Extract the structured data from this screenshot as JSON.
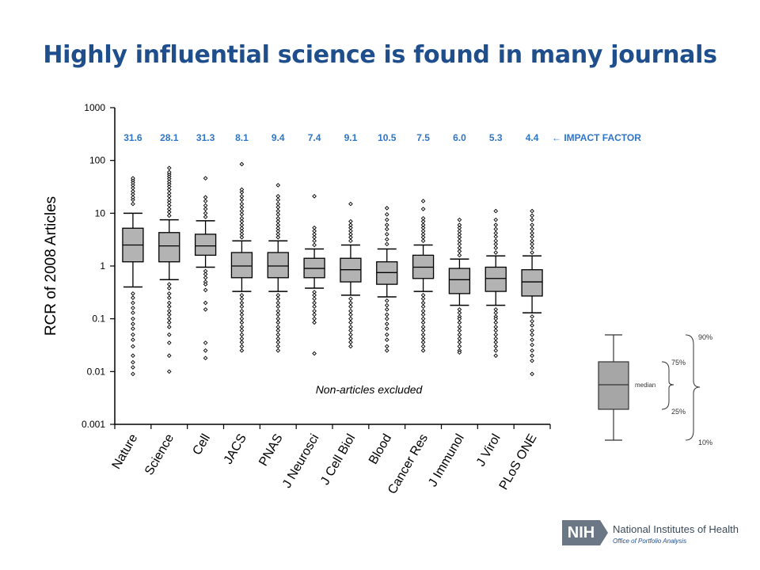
{
  "slide": {
    "title": "Highly influential science is found in many journals"
  },
  "chart_data": {
    "type": "box",
    "ylabel": "RCR of 2008 Articles",
    "yscale": "log",
    "ylim": [
      0.001,
      1000
    ],
    "yticks": [
      "1000",
      "100",
      "10",
      "1",
      "0.1",
      "0.01",
      "0.001"
    ],
    "ytick_values": [
      1000,
      100,
      10,
      1,
      0.1,
      0.01,
      0.001
    ],
    "categories": [
      "Nature",
      "Science",
      "Cell",
      "JACS",
      "PNAS",
      "J Neurosci",
      "J Cell Biol",
      "Blood",
      "Cancer Res",
      "J Immunol",
      "J Virol",
      "PLoS ONE"
    ],
    "impact_factors": [
      "31.6",
      "28.1",
      "31.3",
      "8.1",
      "9.4",
      "7.4",
      "9.1",
      "10.5",
      "7.5",
      "6.0",
      "5.3",
      "4.4"
    ],
    "impact_factor_label": "IMPACT  FACTOR",
    "annotation": "Non-articles excluded",
    "boxes": [
      {
        "p10": 0.4,
        "p25": 1.2,
        "median": 2.5,
        "p75": 5.2,
        "p90": 10,
        "out_high": [
          15,
          18,
          20,
          23,
          26,
          30,
          34,
          38,
          42,
          46
        ],
        "out_low": [
          0.3,
          0.25,
          0.2,
          0.16,
          0.13,
          0.1,
          0.08,
          0.065,
          0.05,
          0.04,
          0.03,
          0.02,
          0.015,
          0.012,
          0.009
        ]
      },
      {
        "p10": 0.55,
        "p25": 1.2,
        "median": 2.4,
        "p75": 4.3,
        "p90": 7.5,
        "out_high": [
          9,
          10.5,
          12,
          14,
          16,
          18,
          21,
          24,
          28,
          32,
          36,
          40,
          45,
          50,
          55,
          60,
          72
        ],
        "out_low": [
          0.45,
          0.38,
          0.3,
          0.25,
          0.2,
          0.17,
          0.14,
          0.12,
          0.1,
          0.085,
          0.07,
          0.05,
          0.035,
          0.02,
          0.01
        ]
      },
      {
        "p10": 0.95,
        "p25": 1.6,
        "median": 2.4,
        "p75": 4.0,
        "p90": 7.2,
        "out_high": [
          8.5,
          10,
          12,
          14,
          17,
          20,
          46
        ],
        "out_low": [
          0.8,
          0.7,
          0.6,
          0.5,
          0.45,
          0.35,
          0.2,
          0.15,
          0.035,
          0.025,
          0.018
        ]
      },
      {
        "p10": 0.33,
        "p25": 0.6,
        "median": 1.0,
        "p75": 1.8,
        "p90": 3.0,
        "out_high": [
          3.5,
          4,
          4.6,
          5.2,
          6,
          7,
          8,
          9.5,
          11,
          13,
          15,
          18,
          21,
          25,
          28,
          85
        ],
        "out_low": [
          0.28,
          0.24,
          0.2,
          0.17,
          0.14,
          0.12,
          0.1,
          0.085,
          0.07,
          0.06,
          0.05,
          0.042,
          0.036,
          0.03,
          0.025
        ]
      },
      {
        "p10": 0.33,
        "p25": 0.6,
        "median": 1.0,
        "p75": 1.8,
        "p90": 3.0,
        "out_high": [
          3.5,
          4,
          4.6,
          5.2,
          6,
          7,
          8,
          9.5,
          11,
          13,
          15,
          18,
          21,
          34
        ],
        "out_low": [
          0.28,
          0.24,
          0.2,
          0.17,
          0.14,
          0.12,
          0.1,
          0.085,
          0.07,
          0.06,
          0.05,
          0.042,
          0.036,
          0.03,
          0.025
        ]
      },
      {
        "p10": 0.38,
        "p25": 0.6,
        "median": 0.9,
        "p75": 1.4,
        "p90": 2.1,
        "out_high": [
          2.5,
          3,
          3.5,
          4,
          4.6,
          5.3,
          21
        ],
        "out_low": [
          0.32,
          0.28,
          0.24,
          0.2,
          0.17,
          0.14,
          0.12,
          0.1,
          0.085,
          0.022
        ]
      },
      {
        "p10": 0.28,
        "p25": 0.5,
        "median": 0.85,
        "p75": 1.4,
        "p90": 2.5,
        "out_high": [
          3,
          3.5,
          4,
          4.6,
          5.3,
          6,
          7,
          15
        ],
        "out_low": [
          0.24,
          0.2,
          0.17,
          0.14,
          0.12,
          0.1,
          0.085,
          0.07,
          0.06,
          0.05,
          0.042,
          0.036,
          0.03
        ]
      },
      {
        "p10": 0.26,
        "p25": 0.45,
        "median": 0.75,
        "p75": 1.2,
        "p90": 2.1,
        "out_high": [
          2.6,
          3.2,
          4,
          5,
          6,
          7.5,
          9.5,
          12.5
        ],
        "out_low": [
          0.22,
          0.18,
          0.15,
          0.12,
          0.1,
          0.08,
          0.065,
          0.05,
          0.04,
          0.03,
          0.025
        ]
      },
      {
        "p10": 0.33,
        "p25": 0.58,
        "median": 0.95,
        "p75": 1.6,
        "p90": 2.5,
        "out_high": [
          3,
          3.5,
          4,
          4.6,
          5.3,
          6,
          7,
          8,
          12,
          17
        ],
        "out_low": [
          0.28,
          0.24,
          0.2,
          0.17,
          0.14,
          0.12,
          0.1,
          0.085,
          0.07,
          0.06,
          0.05,
          0.042,
          0.036,
          0.03,
          0.025
        ]
      },
      {
        "p10": 0.18,
        "p25": 0.3,
        "median": 0.55,
        "p75": 0.9,
        "p90": 1.35,
        "out_high": [
          1.6,
          1.9,
          2.2,
          2.6,
          3,
          3.5,
          4,
          4.6,
          5.3,
          6,
          7.5
        ],
        "out_low": [
          0.15,
          0.13,
          0.11,
          0.1,
          0.085,
          0.07,
          0.06,
          0.05,
          0.042,
          0.036,
          0.03,
          0.025,
          0.023
        ]
      },
      {
        "p10": 0.18,
        "p25": 0.33,
        "median": 0.58,
        "p75": 0.95,
        "p90": 1.55,
        "out_high": [
          1.8,
          2.2,
          2.6,
          3,
          3.6,
          4.2,
          5,
          6,
          7.5,
          11
        ],
        "out_low": [
          0.15,
          0.13,
          0.11,
          0.1,
          0.085,
          0.07,
          0.06,
          0.05,
          0.042,
          0.036,
          0.03,
          0.025,
          0.02
        ]
      },
      {
        "p10": 0.13,
        "p25": 0.27,
        "median": 0.5,
        "p75": 0.85,
        "p90": 1.55,
        "out_high": [
          1.8,
          2.2,
          2.6,
          3,
          3.6,
          4.2,
          5,
          6,
          7.5,
          9,
          11
        ],
        "out_low": [
          0.11,
          0.09,
          0.075,
          0.06,
          0.05,
          0.04,
          0.032,
          0.025,
          0.02,
          0.016,
          0.009
        ]
      }
    ]
  },
  "legend": {
    "p90_label": "90%",
    "p75_label": "75%",
    "median_label": "median",
    "p25_label": "25%",
    "p10_label": "10%"
  },
  "footer": {
    "logo_text": "NIH",
    "org_name": "National Institutes of Health",
    "office_name": "Office of Portfolio Analysis"
  },
  "colors": {
    "title": "#1f4e8c",
    "impact_factor": "#2e75c8",
    "box_fill": "#b3b3b3",
    "stroke": "#000000"
  }
}
